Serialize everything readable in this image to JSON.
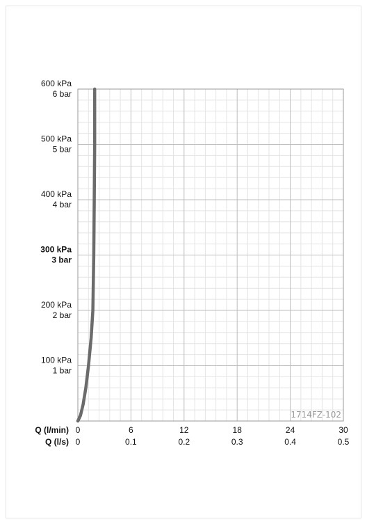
{
  "chart_data": {
    "type": "line",
    "x_axes": [
      {
        "label": "Q (l/min)",
        "ticks": [
          "0",
          "6",
          "12",
          "18",
          "24",
          "30"
        ],
        "range": [
          0,
          30
        ]
      },
      {
        "label": "Q (l/s)",
        "ticks": [
          "0",
          "0.1",
          "0.2",
          "0.3",
          "0.4",
          "0.5"
        ],
        "range": [
          0,
          0.5
        ]
      }
    ],
    "y_ticks": [
      {
        "kpa": "600 kPa",
        "bar": "6 bar",
        "value": 600,
        "bold": false
      },
      {
        "kpa": "500 kPa",
        "bar": "5 bar",
        "value": 500,
        "bold": false
      },
      {
        "kpa": "400 kPa",
        "bar": "4 bar",
        "value": 400,
        "bold": false
      },
      {
        "kpa": "300 kPa",
        "bar": "3 bar",
        "value": 300,
        "bold": true
      },
      {
        "kpa": "200 kPa",
        "bar": "2 bar",
        "value": 200,
        "bold": false
      },
      {
        "kpa": "100 kPa",
        "bar": "1 bar",
        "value": 100,
        "bold": false
      }
    ],
    "ylim": [
      0,
      600
    ],
    "grid": true,
    "series": [
      {
        "x": [
          0,
          0.3,
          0.6,
          0.9,
          1.2,
          1.5,
          1.7,
          1.8,
          1.85,
          1.9,
          1.9
        ],
        "y": [
          0,
          10,
          30,
          60,
          100,
          150,
          200,
          300,
          400,
          500,
          600
        ],
        "color": "#6b6b6b"
      }
    ],
    "code_label": "1714FZ-102"
  }
}
